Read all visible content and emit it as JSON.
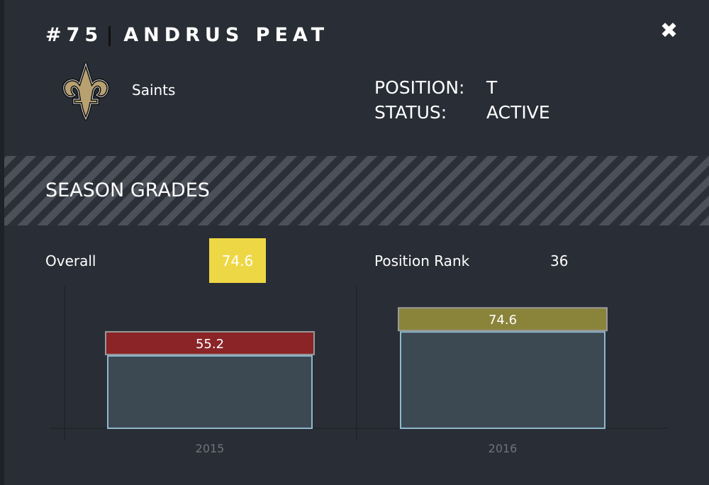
{
  "header": {
    "number": "#75",
    "name": "ANDRUS PEAT",
    "close_icon": "close-icon"
  },
  "team": {
    "name": "Saints",
    "logo": "fleur-de-lis-logo"
  },
  "info": {
    "position_label": "POSITION:",
    "position_value": "T",
    "status_label": "STATUS:",
    "status_value": "ACTIVE"
  },
  "section": {
    "title": "SEASON GRADES"
  },
  "summary": {
    "overall_label": "Overall",
    "overall_value": "74.6",
    "overall_color": "#eed744",
    "rank_label": "Position Rank",
    "rank_value": "36"
  },
  "chart_data": {
    "type": "bar",
    "categories": [
      "2015",
      "2016"
    ],
    "values": [
      55.2,
      74.6
    ],
    "labels": [
      "55.2",
      "74.6"
    ],
    "label_colors": [
      "#8a2427",
      "#8a843b"
    ],
    "bar_color": "#3c4953",
    "bar_outline": "#8fb8cc"
  }
}
